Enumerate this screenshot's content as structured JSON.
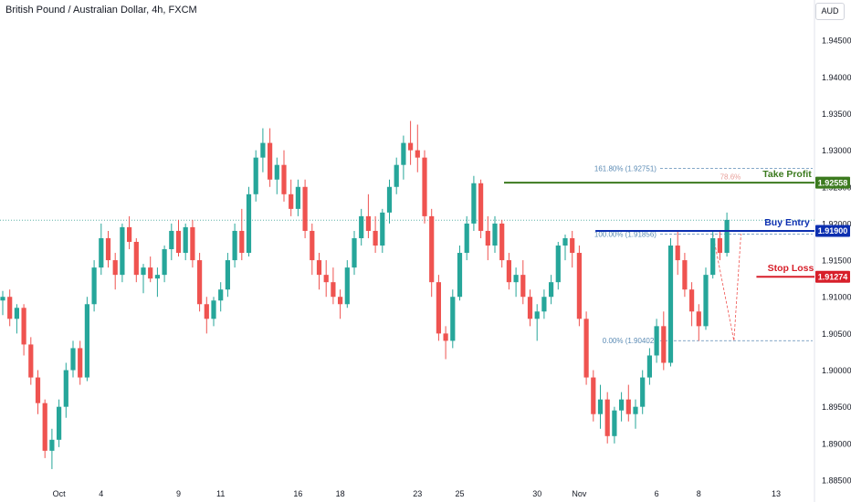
{
  "header": {
    "title": "British Pound / Australian Dollar, 4h, FXCM",
    "currency_button": "AUD"
  },
  "colors": {
    "up": "#26a69a",
    "down": "#ef5350",
    "take_profit": "#3b7a1e",
    "buy_entry": "#0c2fb0",
    "stop_loss": "#d71f2a",
    "fib": "#5b8bb5",
    "grid_dotted": "#5fb3a8"
  },
  "chart_data": {
    "type": "candlestick",
    "title": "British Pound / Australian Dollar, 4h, FXCM",
    "y_ticks": [
      "1.94500",
      "1.94000",
      "1.93500",
      "1.93000",
      "1.92500",
      "1.92000",
      "1.91500",
      "1.91000",
      "1.90500",
      "1.90000",
      "1.89500",
      "1.89000",
      "1.88500"
    ],
    "ylim": [
      1.8845,
      1.9505
    ],
    "x_ticks": [
      {
        "label": "Oct",
        "index": 8
      },
      {
        "label": "4",
        "index": 14
      },
      {
        "label": "9",
        "index": 25
      },
      {
        "label": "11",
        "index": 31
      },
      {
        "label": "16",
        "index": 42
      },
      {
        "label": "18",
        "index": 48
      },
      {
        "label": "23",
        "index": 59
      },
      {
        "label": "25",
        "index": 65
      },
      {
        "label": "30",
        "index": 76
      },
      {
        "label": "Nov",
        "index": 82
      },
      {
        "label": "6",
        "index": 93
      },
      {
        "label": "8",
        "index": 99
      },
      {
        "label": "13",
        "index": 110
      }
    ],
    "candles": [
      [
        1.9095,
        1.9108,
        1.9075,
        1.91
      ],
      [
        1.91,
        1.911,
        1.906,
        1.907
      ],
      [
        1.907,
        1.909,
        1.905,
        1.9085
      ],
      [
        1.9085,
        1.909,
        1.902,
        1.9035
      ],
      [
        1.9035,
        1.9045,
        1.898,
        1.899
      ],
      [
        1.899,
        1.9,
        1.894,
        1.8955
      ],
      [
        1.8955,
        1.896,
        1.888,
        1.889
      ],
      [
        1.889,
        1.892,
        1.8865,
        1.8905
      ],
      [
        1.8905,
        1.896,
        1.8895,
        1.895
      ],
      [
        1.895,
        1.901,
        1.8935,
        1.9
      ],
      [
        1.9,
        1.904,
        1.899,
        1.903
      ],
      [
        1.903,
        1.904,
        1.898,
        1.899
      ],
      [
        1.899,
        1.91,
        1.8985,
        1.909
      ],
      [
        1.909,
        1.915,
        1.908,
        1.914
      ],
      [
        1.914,
        1.92,
        1.913,
        1.918
      ],
      [
        1.918,
        1.919,
        1.914,
        1.915
      ],
      [
        1.915,
        1.916,
        1.911,
        1.913
      ],
      [
        1.913,
        1.92,
        1.912,
        1.9195
      ],
      [
        1.9195,
        1.921,
        1.9165,
        1.9175
      ],
      [
        1.9175,
        1.918,
        1.912,
        1.913
      ],
      [
        1.913,
        1.9145,
        1.9105,
        1.914
      ],
      [
        1.914,
        1.9155,
        1.912,
        1.9125
      ],
      [
        1.9125,
        1.914,
        1.91,
        1.913
      ],
      [
        1.913,
        1.917,
        1.912,
        1.9165
      ],
      [
        1.9165,
        1.92,
        1.915,
        1.919
      ],
      [
        1.919,
        1.9205,
        1.9155,
        1.916
      ],
      [
        1.916,
        1.92,
        1.915,
        1.9195
      ],
      [
        1.9195,
        1.9205,
        1.914,
        1.915
      ],
      [
        1.915,
        1.916,
        1.908,
        1.909
      ],
      [
        1.909,
        1.91,
        1.905,
        1.907
      ],
      [
        1.907,
        1.91,
        1.906,
        1.9095
      ],
      [
        1.9095,
        1.912,
        1.908,
        1.911
      ],
      [
        1.911,
        1.916,
        1.91,
        1.915
      ],
      [
        1.915,
        1.92,
        1.914,
        1.919
      ],
      [
        1.919,
        1.922,
        1.915,
        1.916
      ],
      [
        1.916,
        1.925,
        1.9155,
        1.924
      ],
      [
        1.924,
        1.93,
        1.923,
        1.929
      ],
      [
        1.929,
        1.933,
        1.927,
        1.931
      ],
      [
        1.931,
        1.933,
        1.925,
        1.926
      ],
      [
        1.926,
        1.929,
        1.924,
        1.928
      ],
      [
        1.928,
        1.93,
        1.923,
        1.924
      ],
      [
        1.924,
        1.926,
        1.921,
        1.922
      ],
      [
        1.922,
        1.926,
        1.921,
        1.925
      ],
      [
        1.925,
        1.926,
        1.918,
        1.919
      ],
      [
        1.919,
        1.92,
        1.913,
        1.915
      ],
      [
        1.915,
        1.916,
        1.911,
        1.913
      ],
      [
        1.913,
        1.915,
        1.91,
        1.912
      ],
      [
        1.912,
        1.914,
        1.909,
        1.91
      ],
      [
        1.91,
        1.911,
        1.907,
        1.909
      ],
      [
        1.909,
        1.915,
        1.9085,
        1.914
      ],
      [
        1.914,
        1.919,
        1.913,
        1.918
      ],
      [
        1.918,
        1.922,
        1.917,
        1.921
      ],
      [
        1.921,
        1.924,
        1.918,
        1.919
      ],
      [
        1.919,
        1.921,
        1.916,
        1.917
      ],
      [
        1.917,
        1.922,
        1.916,
        1.9215
      ],
      [
        1.9215,
        1.926,
        1.92,
        1.925
      ],
      [
        1.925,
        1.929,
        1.924,
        1.928
      ],
      [
        1.928,
        1.932,
        1.926,
        1.931
      ],
      [
        1.931,
        1.934,
        1.928,
        1.93
      ],
      [
        1.93,
        1.9335,
        1.927,
        1.929
      ],
      [
        1.929,
        1.93,
        1.92,
        1.921
      ],
      [
        1.921,
        1.922,
        1.91,
        1.912
      ],
      [
        1.912,
        1.913,
        1.904,
        1.905
      ],
      [
        1.905,
        1.906,
        1.9015,
        1.904
      ],
      [
        1.904,
        1.911,
        1.903,
        1.91
      ],
      [
        1.91,
        1.917,
        1.9095,
        1.916
      ],
      [
        1.916,
        1.921,
        1.915,
        1.92
      ],
      [
        1.92,
        1.9265,
        1.919,
        1.9255
      ],
      [
        1.9255,
        1.926,
        1.918,
        1.919
      ],
      [
        1.919,
        1.921,
        1.915,
        1.917
      ],
      [
        1.917,
        1.921,
        1.916,
        1.92
      ],
      [
        1.92,
        1.9205,
        1.914,
        1.915
      ],
      [
        1.915,
        1.916,
        1.911,
        1.912
      ],
      [
        1.912,
        1.914,
        1.91,
        1.913
      ],
      [
        1.913,
        1.915,
        1.909,
        1.91
      ],
      [
        1.91,
        1.911,
        1.906,
        1.907
      ],
      [
        1.907,
        1.909,
        1.904,
        1.908
      ],
      [
        1.908,
        1.911,
        1.907,
        1.91
      ],
      [
        1.91,
        1.913,
        1.909,
        1.912
      ],
      [
        1.912,
        1.9175,
        1.911,
        1.917
      ],
      [
        1.917,
        1.9185,
        1.915,
        1.918
      ],
      [
        1.918,
        1.919,
        1.914,
        1.916
      ],
      [
        1.916,
        1.917,
        1.906,
        1.907
      ],
      [
        1.907,
        1.908,
        1.898,
        1.899
      ],
      [
        1.899,
        1.9,
        1.893,
        1.894
      ],
      [
        1.894,
        1.898,
        1.892,
        1.896
      ],
      [
        1.896,
        1.897,
        1.89,
        1.891
      ],
      [
        1.891,
        1.895,
        1.89,
        1.8945
      ],
      [
        1.8945,
        1.897,
        1.893,
        1.896
      ],
      [
        1.896,
        1.898,
        1.893,
        1.894
      ],
      [
        1.894,
        1.896,
        1.892,
        1.895
      ],
      [
        1.895,
        1.9,
        1.894,
        1.899
      ],
      [
        1.899,
        1.903,
        1.898,
        1.902
      ],
      [
        1.902,
        1.907,
        1.901,
        1.906
      ],
      [
        1.906,
        1.908,
        1.9,
        1.901
      ],
      [
        1.901,
        1.918,
        1.9005,
        1.917
      ],
      [
        1.917,
        1.919,
        1.913,
        1.915
      ],
      [
        1.915,
        1.916,
        1.91,
        1.911
      ],
      [
        1.911,
        1.912,
        1.906,
        1.908
      ],
      [
        1.908,
        1.909,
        1.904,
        1.906
      ],
      [
        1.906,
        1.914,
        1.9055,
        1.913
      ],
      [
        1.913,
        1.919,
        1.9125,
        1.918
      ],
      [
        1.918,
        1.919,
        1.915,
        1.916
      ],
      [
        1.916,
        1.9215,
        1.9155,
        1.9205
      ]
    ],
    "levels": {
      "take_profit": {
        "label": "Take Profit",
        "price": 1.92558,
        "price_label": "1.92558"
      },
      "buy_entry": {
        "label": "Buy Entry",
        "price": 1.919,
        "price_label": "1.91900"
      },
      "stop_loss": {
        "label": "Stop Loss",
        "price": 1.91274,
        "price_label": "1.91274"
      }
    },
    "fib_levels": [
      {
        "label": "161.80% (1.92751)",
        "price": 1.92751
      },
      {
        "label": "100.00% (1.91856)",
        "price": 1.91856
      },
      {
        "label": "0.00% (1.90402)",
        "price": 1.90402
      }
    ],
    "fib_secondary_label": "78.6%",
    "current_price_line": 1.92045
  }
}
